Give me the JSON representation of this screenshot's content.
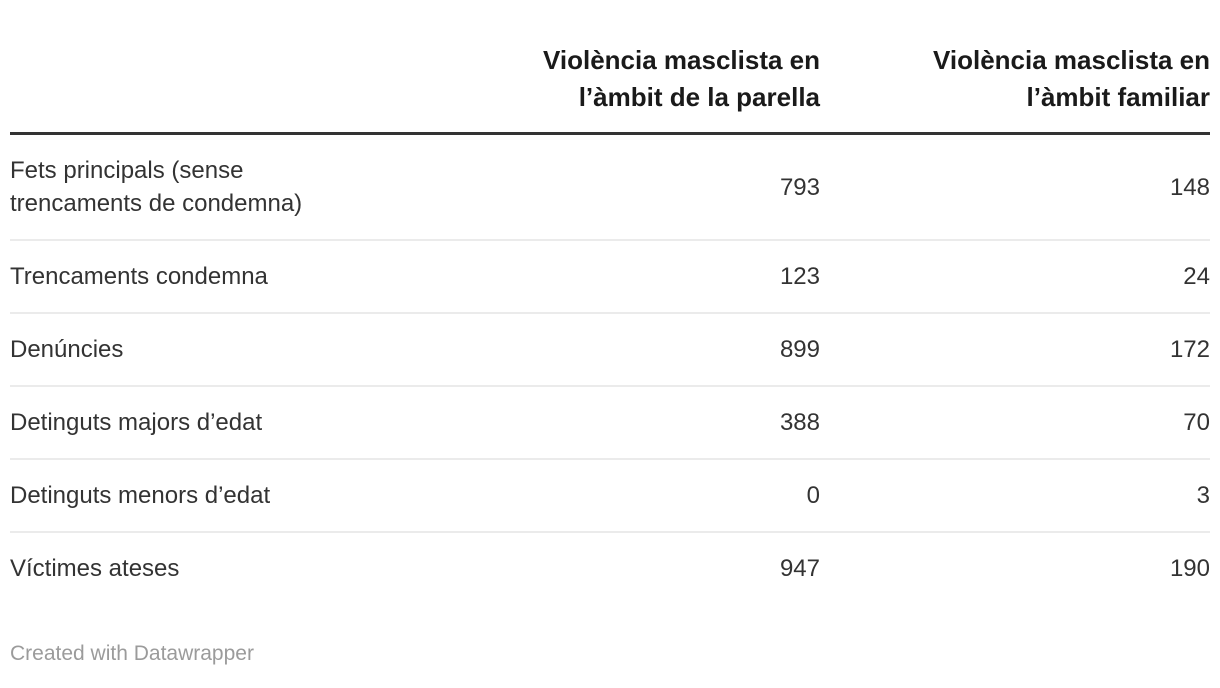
{
  "table": {
    "header": {
      "row_label_column": "",
      "col1": "Violència masclista en l’àmbit de la parella",
      "col2": "Violència masclista en l’àmbit familiar"
    },
    "rows": [
      {
        "label": "Fets principals (sense trencaments de condemna)",
        "col1": "793",
        "col2": "148"
      },
      {
        "label": "Trencaments condemna",
        "col1": "123",
        "col2": "24"
      },
      {
        "label": "Denúncies",
        "col1": "899",
        "col2": "172"
      },
      {
        "label": "Detinguts majors d’edat",
        "col1": "388",
        "col2": "70"
      },
      {
        "label": "Detinguts menors d’edat",
        "col1": "0",
        "col2": "3"
      },
      {
        "label": "Víctimes ateses",
        "col1": "947",
        "col2": "190"
      }
    ]
  },
  "footer": {
    "credit": "Created with Datawrapper"
  },
  "colors": {
    "header_text": "#1a1a1a",
    "body_text": "#333333",
    "header_border": "#333333",
    "row_border": "#ebebeb",
    "footer_text": "#9b9b9b",
    "page_bg": "#ffffff"
  },
  "chart_data": {
    "type": "table",
    "categories": [
      "Fets principals (sense trencaments de condemna)",
      "Trencaments condemna",
      "Denúncies",
      "Detinguts majors d’edat",
      "Detinguts menors d’edat",
      "Víctimes ateses"
    ],
    "series": [
      {
        "name": "Violència masclista en l’àmbit de la parella",
        "values": [
          793,
          123,
          899,
          388,
          0,
          947
        ]
      },
      {
        "name": "Violència masclista en l’àmbit familiar",
        "values": [
          148,
          24,
          172,
          70,
          3,
          190
        ]
      }
    ],
    "title": "",
    "footer": "Created with Datawrapper",
    "layout_hints": {
      "grid": "horizontal row separators",
      "value_alignment": "right"
    }
  }
}
